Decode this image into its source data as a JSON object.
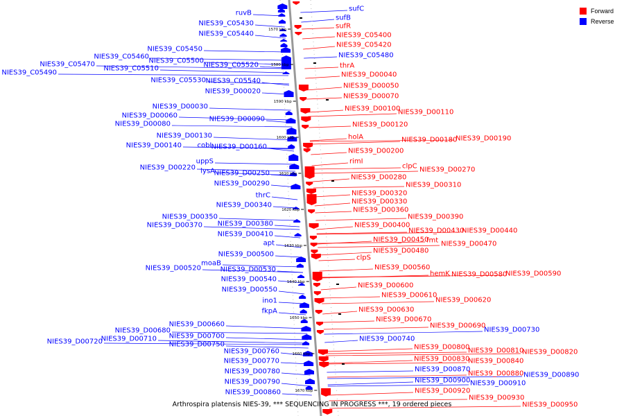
{
  "legend": {
    "forward_label": "Forward",
    "reverse_label": "Reverse",
    "forward_color": "#ff0000",
    "reverse_color": "#0000ff"
  },
  "caption": "Arthrospira platensis NIES-39, *** SEQUENCING IN PROGRESS ***, 19 ordered pieces",
  "scale_marks": [
    "1570 kbp",
    "1580 kbp",
    "1590 kbp",
    "1600 kbp",
    "1610 kbp",
    "1620 kbp",
    "1630 kbp",
    "1640 kbp",
    "1650 kbp",
    "1660 kbp",
    "1670 kbp"
  ],
  "reverse_genes": [
    "ruvB",
    "NIES39_C05430",
    "NIES39_C05440",
    "NIES39_C05450",
    "NIES39_C05460",
    "NIES39_C05470",
    "NIES39_C05490",
    "NIES39_C05500",
    "NIES39_C05510",
    "NIES39_C05520",
    "NIES39_C05530",
    "NIES39_C05540",
    "NIES39_D00020",
    "NIES39_D00030",
    "NIES39_D00060",
    "NIES39_D00080",
    "NIES39_D00090",
    "NIES39_D00130",
    "NIES39_D00140",
    "cobL",
    "NIES39_D00160",
    "uppS",
    "NIES39_D00220",
    "lysA",
    "NIES39_D00250",
    "NIES39_D00290",
    "thrC",
    "NIES39_D00340",
    "NIES39_D00350",
    "NIES39_D00370",
    "NIES39_D00380",
    "NIES39_D00410",
    "apt",
    "NIES39_D00500",
    "moaB",
    "NIES39_D00520",
    "NIES39_D00530",
    "NIES39_D00540",
    "NIES39_D00550",
    "ino1",
    "fkpA",
    "NIES39_D00660",
    "NIES39_D00680",
    "NIES39_D00700",
    "NIES39_D00710",
    "NIES39_D00720",
    "NIES39_D00750",
    "NIES39_D00760",
    "NIES39_D00770",
    "NIES39_D00780",
    "NIES39_D00790",
    "NIES39_D00860",
    "sufC",
    "sufB",
    "NIES39_C05480",
    "NIES39_D00740",
    "NIES39_D00730",
    "NIES39_D00870",
    "NIES39_D00890",
    "NIES39_D00900",
    "NIES39_D00910"
  ],
  "forward_genes": [
    "sufR",
    "NIES39_C05400",
    "NIES39_C05420",
    "thrA",
    "NIES39_D00040",
    "NIES39_D00050",
    "NIES39_D00070",
    "NIES39_D00100",
    "NIES39_D00110",
    "NIES39_D00120",
    "holA",
    "NIES39_D00180",
    "NIES39_D00190",
    "NIES39_D00200",
    "rimI",
    "clpC",
    "NIES39_D00270",
    "NIES39_D00280",
    "NIES39_D00310",
    "NIES39_D00320",
    "NIES39_D00330",
    "NIES39_D00360",
    "NIES39_D00390",
    "NIES39_D00400",
    "NIES39_D00430",
    "NIES39_D00440",
    "NIES39_D00450",
    "fmt",
    "NIES39_D00470",
    "NIES39_D00480",
    "clpS",
    "NIES39_D00560",
    "hemK",
    "NIES39_D00580",
    "NIES39_D00590",
    "NIES39_D00600",
    "NIES39_D00610",
    "NIES39_D00620",
    "NIES39_D00630",
    "NIES39_D00670",
    "NIES39_D00690",
    "NIES39_D00800",
    "NIES39_D00810",
    "NIES39_D00820",
    "NIES39_D00830",
    "NIES39_D00840",
    "NIES39_D00880",
    "NIES39_D00920",
    "NIES39_D00930",
    "NIES39_D00950"
  ]
}
